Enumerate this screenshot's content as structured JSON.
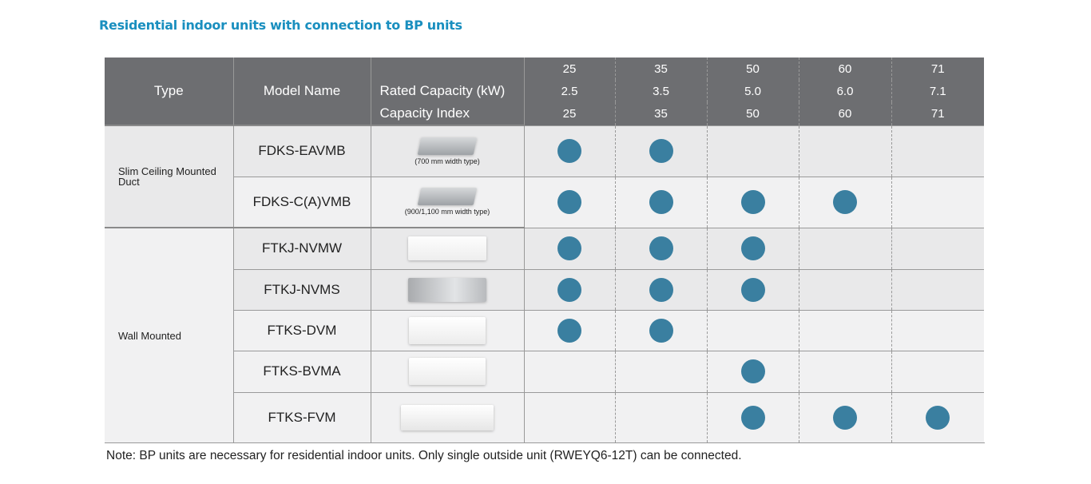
{
  "title": "Residential indoor units with connection to BP units",
  "header": {
    "type": "Type",
    "model_name": "Model Name",
    "rated_capacity_label": "Rated Capacity (kW)",
    "capacity_index_label": "Capacity Index",
    "classes": [
      "25",
      "35",
      "50",
      "60",
      "71"
    ],
    "rated_capacity": [
      "2.5",
      "3.5",
      "5.0",
      "6.0",
      "7.1"
    ],
    "capacity_index": [
      "25",
      "35",
      "50",
      "60",
      "71"
    ]
  },
  "groups": [
    {
      "type": "Slim Ceiling Mounted Duct",
      "rows": [
        {
          "model": "FDKS-EAVMB",
          "image": "duct-unit",
          "caption": "(700 mm width type)",
          "available": [
            true,
            true,
            false,
            false,
            false
          ]
        },
        {
          "model": "FDKS-C(A)VMB",
          "image": "duct-unit",
          "caption": "(900/1,100 mm width type)",
          "available": [
            true,
            true,
            true,
            true,
            false
          ]
        }
      ]
    },
    {
      "type": "Wall Mounted",
      "rows": [
        {
          "model": "FTKJ-NVMW",
          "image": "wall-unit-white",
          "available": [
            true,
            true,
            true,
            false,
            false
          ]
        },
        {
          "model": "FTKJ-NVMS",
          "image": "wall-unit-silver",
          "available": [
            true,
            true,
            true,
            false,
            false
          ]
        },
        {
          "model": "FTKS-DVM",
          "image": "wall-unit",
          "available": [
            true,
            true,
            false,
            false,
            false
          ]
        },
        {
          "model": "FTKS-BVMA",
          "image": "wall-unit",
          "available": [
            false,
            false,
            true,
            false,
            false
          ]
        },
        {
          "model": "FTKS-FVM",
          "image": "wall-unit-large",
          "available": [
            false,
            false,
            true,
            true,
            true
          ]
        }
      ]
    }
  ],
  "note": "Note: BP units are necessary for residential indoor units. Only single outside unit (RWEYQ6-12T) can be connected.",
  "colors": {
    "header_bg": "#6d6e71",
    "dot": "#3a7fa0",
    "title": "#1a8fbf"
  }
}
